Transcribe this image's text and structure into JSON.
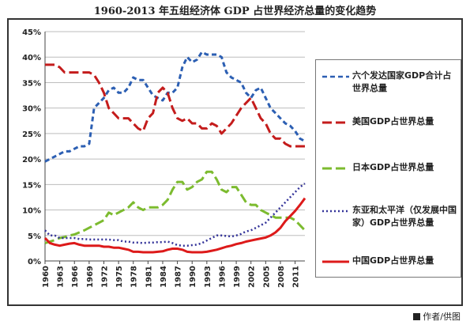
{
  "title": "1960-2013 年五组经济体 GDP 占世界经济总量的变化趋势",
  "credit": "作者/供图",
  "chart_data": {
    "type": "line",
    "title": "1960-2013 年五组经济体 GDP 占世界经济总量的变化趋势",
    "xlabel": "",
    "ylabel": "",
    "xlim": [
      1960,
      2013
    ],
    "ylim": [
      0,
      45
    ],
    "grid": true,
    "legend_position": "right",
    "x_ticks": [
      "1960",
      "1963",
      "1966",
      "1969",
      "1972",
      "1975",
      "1978",
      "1981",
      "1984",
      "1987",
      "1990",
      "1993",
      "1996",
      "1999",
      "2002",
      "2005",
      "2008",
      "2011"
    ],
    "y_ticks": [
      0,
      5,
      10,
      15,
      20,
      25,
      30,
      35,
      40,
      45
    ],
    "y_tick_labels": [
      "0%",
      "5%",
      "10%",
      "15%",
      "20%",
      "25%",
      "30%",
      "35%",
      "40%",
      "45%"
    ],
    "series": [
      {
        "name": "六个发达国家GDP合计占世界总量",
        "color": "#2c5fb3",
        "dash": "dashed",
        "x": [
          1960,
          1961,
          1962,
          1963,
          1964,
          1965,
          1966,
          1967,
          1968,
          1969,
          1970,
          1971,
          1972,
          1973,
          1974,
          1975,
          1976,
          1977,
          1978,
          1979,
          1980,
          1981,
          1982,
          1983,
          1984,
          1985,
          1986,
          1987,
          1988,
          1989,
          1990,
          1991,
          1992,
          1993,
          1994,
          1995,
          1996,
          1997,
          1998,
          1999,
          2000,
          2001,
          2002,
          2003,
          2004,
          2005,
          2006,
          2007,
          2008,
          2009,
          2010,
          2011,
          2012,
          2013
        ],
        "values": [
          19.5,
          20,
          20.5,
          21,
          21.5,
          21.5,
          22,
          22.5,
          22.5,
          23,
          30,
          31,
          32,
          33.5,
          34,
          33,
          33,
          34,
          36,
          35.5,
          35.5,
          34,
          32.5,
          32,
          31.5,
          33,
          33,
          34,
          38,
          40,
          39,
          39.5,
          41,
          40.5,
          40.5,
          40.5,
          40,
          37,
          36,
          35.5,
          35,
          33,
          32,
          33.5,
          34,
          32,
          30,
          29,
          28,
          27,
          26.5,
          25.5,
          24,
          23.5
        ]
      },
      {
        "name": "美国GDP占世界总量",
        "color": "#c41c1c",
        "dash": "longdash",
        "x": [
          1960,
          1961,
          1962,
          1963,
          1964,
          1965,
          1966,
          1967,
          1968,
          1969,
          1970,
          1971,
          1972,
          1973,
          1974,
          1975,
          1976,
          1977,
          1978,
          1979,
          1980,
          1981,
          1982,
          1983,
          1984,
          1985,
          1986,
          1987,
          1988,
          1989,
          1990,
          1991,
          1992,
          1993,
          1994,
          1995,
          1996,
          1997,
          1998,
          1999,
          2000,
          2001,
          2002,
          2003,
          2004,
          2005,
          2006,
          2007,
          2008,
          2009,
          2010,
          2011,
          2012,
          2013
        ],
        "values": [
          38.5,
          38.5,
          38.5,
          38,
          37,
          37,
          37,
          37,
          37,
          37,
          36.5,
          35,
          33,
          30,
          29,
          28,
          28,
          28,
          27,
          26,
          25.5,
          28,
          29,
          33,
          34,
          33,
          30,
          28,
          27.5,
          28,
          27,
          27,
          26,
          26,
          27,
          26.5,
          25,
          26,
          27,
          28.5,
          30,
          31,
          32,
          30,
          28,
          27,
          25,
          24,
          24,
          23,
          22.5,
          22.5,
          22.5,
          22.5
        ]
      },
      {
        "name": "日本GDP占世界总量",
        "color": "#7cbb2f",
        "dash": "longdash",
        "x": [
          1960,
          1961,
          1962,
          1963,
          1964,
          1965,
          1966,
          1967,
          1968,
          1969,
          1970,
          1971,
          1972,
          1973,
          1974,
          1975,
          1976,
          1977,
          1978,
          1979,
          1980,
          1981,
          1982,
          1983,
          1984,
          1985,
          1986,
          1987,
          1988,
          1989,
          1990,
          1991,
          1992,
          1993,
          1994,
          1995,
          1996,
          1997,
          1998,
          1999,
          2000,
          2001,
          2002,
          2003,
          2004,
          2005,
          2006,
          2007,
          2008,
          2009,
          2010,
          2011,
          2012,
          2013
        ],
        "values": [
          3.5,
          3.8,
          4.1,
          4.5,
          4.7,
          5,
          5.2,
          5.6,
          6,
          6.5,
          7,
          7.5,
          8,
          9.5,
          9,
          9.5,
          10,
          10.5,
          11.5,
          10.5,
          10,
          10.5,
          10.5,
          10.5,
          11,
          12,
          14,
          15.5,
          15.5,
          14,
          14.5,
          15.5,
          16,
          17.5,
          17.5,
          16,
          14,
          13.5,
          14.5,
          14.5,
          13,
          11.5,
          11,
          11,
          10,
          9.5,
          9,
          8.5,
          8.5,
          8.5,
          8.5,
          8,
          7,
          6
        ]
      },
      {
        "name": "东亚和太平洋（仅发展中国家）GDP占世界总量",
        "color": "#333399",
        "dash": "dotted",
        "x": [
          1960,
          1961,
          1962,
          1963,
          1964,
          1965,
          1966,
          1967,
          1968,
          1969,
          1970,
          1971,
          1972,
          1973,
          1974,
          1975,
          1976,
          1977,
          1978,
          1979,
          1980,
          1981,
          1982,
          1983,
          1984,
          1985,
          1986,
          1987,
          1988,
          1989,
          1990,
          1991,
          1992,
          1993,
          1994,
          1995,
          1996,
          1997,
          1998,
          1999,
          2000,
          2001,
          2002,
          2003,
          2004,
          2005,
          2006,
          2007,
          2008,
          2009,
          2010,
          2011,
          2012,
          2013
        ],
        "values": [
          6,
          5,
          5,
          4.5,
          4.5,
          4.5,
          4.5,
          4.3,
          4.3,
          4.2,
          4.2,
          4.2,
          4.2,
          4.2,
          4.1,
          4.1,
          3.8,
          3.8,
          3.6,
          3.6,
          3.5,
          3.6,
          3.6,
          3.7,
          3.7,
          3.8,
          3.5,
          3.1,
          3,
          3,
          3.1,
          3.2,
          3.5,
          4,
          4.5,
          5,
          5,
          4.9,
          4.8,
          5,
          5.3,
          5.8,
          6,
          6.5,
          7,
          7.5,
          8.5,
          9.5,
          10.5,
          11.5,
          12.5,
          13.5,
          14.5,
          15.2
        ]
      },
      {
        "name": "中国GDP占世界总量",
        "color": "#dd1a1a",
        "dash": "solid",
        "x": [
          1960,
          1961,
          1962,
          1963,
          1964,
          1965,
          1966,
          1967,
          1968,
          1969,
          1970,
          1971,
          1972,
          1973,
          1974,
          1975,
          1976,
          1977,
          1978,
          1979,
          1980,
          1981,
          1982,
          1983,
          1984,
          1985,
          1986,
          1987,
          1988,
          1989,
          1990,
          1991,
          1992,
          1993,
          1994,
          1995,
          1996,
          1997,
          1998,
          1999,
          2000,
          2001,
          2002,
          2003,
          2004,
          2005,
          2006,
          2007,
          2008,
          2009,
          2010,
          2011,
          2012,
          2013
        ],
        "values": [
          4.5,
          3.5,
          3.2,
          3,
          3.2,
          3.4,
          3.5,
          3.2,
          3,
          3,
          3,
          3,
          2.8,
          2.8,
          2.6,
          2.6,
          2.4,
          2.2,
          1.8,
          1.8,
          1.7,
          1.7,
          1.7,
          1.8,
          1.9,
          2.2,
          2.4,
          2.4,
          2.2,
          1.8,
          1.7,
          1.7,
          1.7,
          1.8,
          2,
          2.2,
          2.5,
          2.8,
          3,
          3.3,
          3.5,
          3.8,
          4,
          4.2,
          4.4,
          4.6,
          5,
          5.6,
          6.5,
          7.8,
          8.8,
          9.8,
          11,
          12.3
        ]
      }
    ]
  }
}
